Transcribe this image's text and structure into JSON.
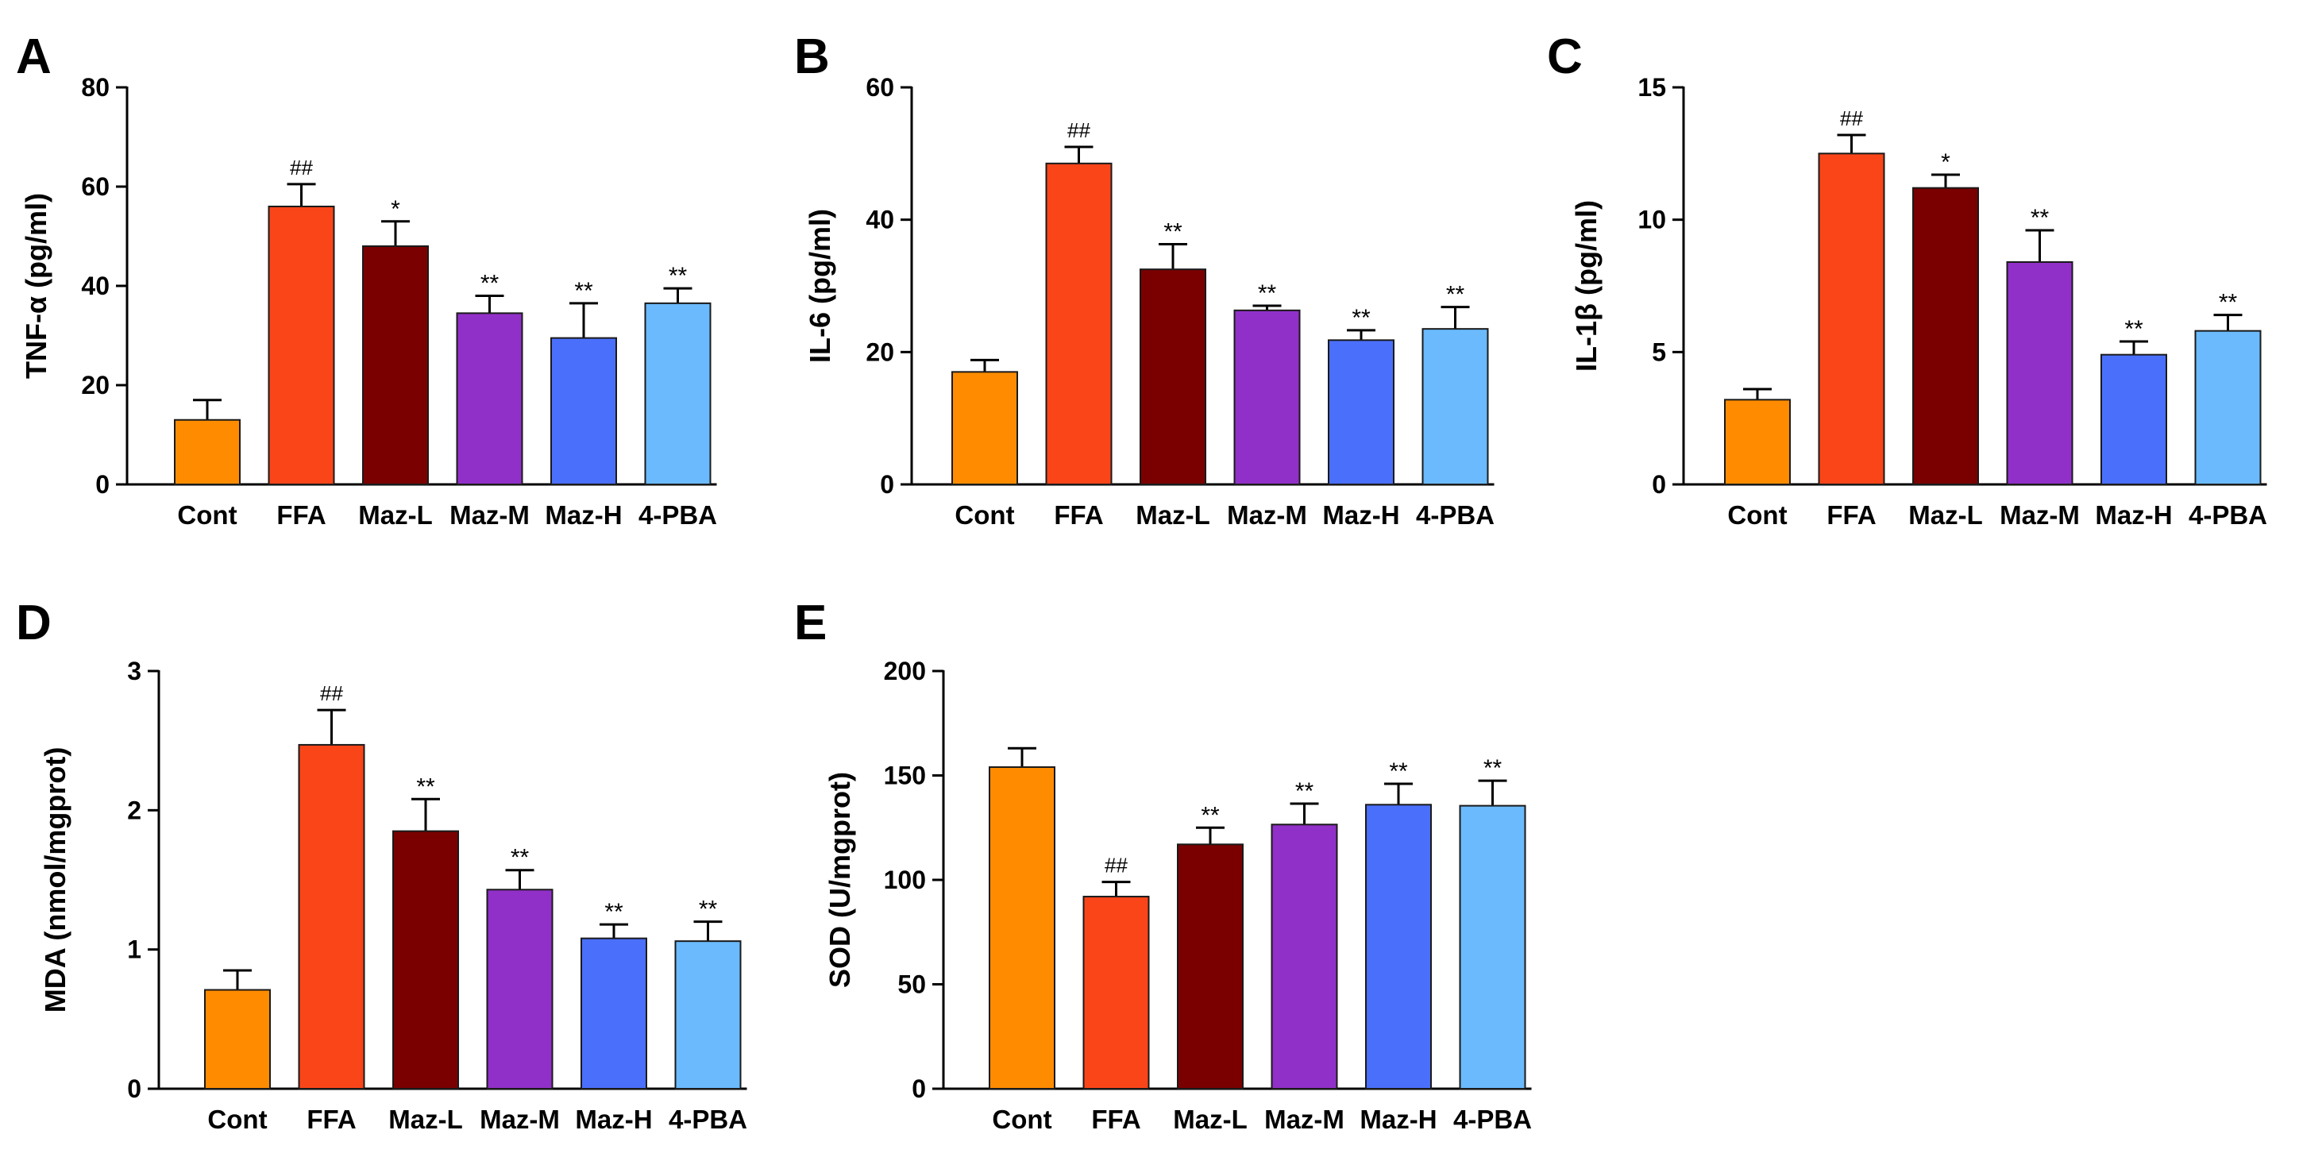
{
  "figure": {
    "background": "#ffffff"
  },
  "colors": [
    "#ff8c00",
    "#fa4519",
    "#7a0000",
    "#9130c8",
    "#4a6ffb",
    "#6abafd"
  ],
  "chart_data": [
    {
      "panel_label": "A",
      "type": "bar",
      "categories": [
        "Cont",
        "FFA",
        "Maz-L",
        "Maz-M",
        "Maz-H",
        "4-PBA"
      ],
      "values": [
        13,
        56,
        48,
        34.5,
        29.5,
        36.5
      ],
      "errors": [
        4,
        4.5,
        5,
        3.5,
        7,
        3
      ],
      "annotations": [
        "",
        "##",
        "*",
        "**",
        "**",
        "**"
      ],
      "ylabel": "TNF-α (pg/ml)",
      "xlabel": "",
      "ylim": [
        0,
        80
      ],
      "yticks": [
        0,
        20,
        40,
        60,
        80
      ]
    },
    {
      "panel_label": "B",
      "type": "bar",
      "categories": [
        "Cont",
        "FFA",
        "Maz-L",
        "Maz-M",
        "Maz-H",
        "4-PBA"
      ],
      "values": [
        17,
        48.5,
        32.5,
        26.3,
        21.8,
        23.5
      ],
      "errors": [
        1.8,
        2.5,
        3.8,
        0.7,
        1.5,
        3.3
      ],
      "annotations": [
        "",
        "##",
        "**",
        "**",
        "**",
        "**"
      ],
      "ylabel": "IL-6 (pg/ml)",
      "xlabel": "",
      "ylim": [
        0,
        60
      ],
      "yticks": [
        0,
        20,
        40,
        60
      ]
    },
    {
      "panel_label": "C",
      "type": "bar",
      "categories": [
        "Cont",
        "FFA",
        "Maz-L",
        "Maz-M",
        "Maz-H",
        "4-PBA"
      ],
      "values": [
        3.2,
        12.5,
        11.2,
        8.4,
        4.9,
        5.8
      ],
      "errors": [
        0.4,
        0.7,
        0.5,
        1.2,
        0.5,
        0.6
      ],
      "annotations": [
        "",
        "##",
        "*",
        "**",
        "**",
        "**"
      ],
      "ylabel": "IL-1β (pg/ml)",
      "xlabel": "",
      "ylim": [
        0,
        15
      ],
      "yticks": [
        0,
        5,
        10,
        15
      ]
    },
    {
      "panel_label": "D",
      "type": "bar",
      "categories": [
        "Cont",
        "FFA",
        "Maz-L",
        "Maz-M",
        "Maz-H",
        "4-PBA"
      ],
      "values": [
        0.71,
        2.47,
        1.85,
        1.43,
        1.08,
        1.06
      ],
      "errors": [
        0.14,
        0.25,
        0.23,
        0.14,
        0.1,
        0.14
      ],
      "annotations": [
        "",
        "##",
        "**",
        "**",
        "**",
        "**"
      ],
      "ylabel": "MDA (nmol/mgprot)",
      "xlabel": "",
      "ylim": [
        0,
        3
      ],
      "yticks": [
        0,
        1,
        2,
        3
      ]
    },
    {
      "panel_label": "E",
      "type": "bar",
      "categories": [
        "Cont",
        "FFA",
        "Maz-L",
        "Maz-M",
        "Maz-H",
        "4-PBA"
      ],
      "values": [
        154,
        92,
        117,
        126.5,
        136,
        135.5
      ],
      "errors": [
        9,
        7,
        8,
        10,
        10,
        12
      ],
      "annotations": [
        "",
        "##",
        "**",
        "**",
        "**",
        "**"
      ],
      "ylabel": "SOD (U/mgprot)",
      "xlabel": "",
      "ylim": [
        0,
        200
      ],
      "yticks": [
        0,
        50,
        100,
        150,
        200
      ]
    }
  ]
}
